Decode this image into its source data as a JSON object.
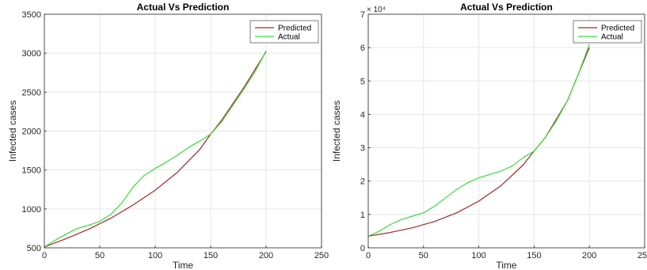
{
  "chart_data": [
    {
      "type": "line",
      "title": "Actual Vs Prediction",
      "xlabel": "Time",
      "ylabel": "Infected cases",
      "xlim": [
        0,
        250
      ],
      "ylim": [
        500,
        3500
      ],
      "xticks": [
        "0",
        "50",
        "100",
        "150",
        "200",
        "250"
      ],
      "yticks": [
        "500",
        "1000",
        "1500",
        "2000",
        "2500",
        "3000",
        "3500"
      ],
      "exponent_label": "",
      "grid": true,
      "legend_position": "top-right",
      "series": [
        {
          "name": "Predicted",
          "color": "#a0282d",
          "x": [
            0,
            20,
            40,
            60,
            80,
            100,
            120,
            140,
            150,
            160,
            180,
            200
          ],
          "y": [
            510,
            620,
            740,
            880,
            1050,
            1240,
            1470,
            1760,
            1960,
            2140,
            2560,
            3020
          ]
        },
        {
          "name": "Actual",
          "color": "#3cdc3c",
          "x": [
            0,
            10,
            20,
            30,
            40,
            50,
            60,
            70,
            80,
            90,
            100,
            110,
            120,
            130,
            140,
            150,
            160,
            170,
            180,
            190,
            200
          ],
          "y": [
            510,
            600,
            680,
            750,
            790,
            840,
            930,
            1080,
            1280,
            1430,
            1520,
            1600,
            1690,
            1790,
            1870,
            1960,
            2120,
            2330,
            2540,
            2760,
            3030
          ]
        }
      ]
    },
    {
      "type": "line",
      "title": "Actual Vs Prediction",
      "xlabel": "Time",
      "ylabel": "Infected cases",
      "xlim": [
        0,
        250
      ],
      "ylim": [
        0,
        70000
      ],
      "xticks": [
        "0",
        "50",
        "100",
        "150",
        "200",
        "250"
      ],
      "yticks": [
        "0",
        "1",
        "2",
        "3",
        "4",
        "5",
        "6",
        "7"
      ],
      "exponent_label": "× 10⁴",
      "grid": true,
      "legend_position": "top-right",
      "series": [
        {
          "name": "Predicted",
          "color": "#a0282d",
          "x": [
            0,
            20,
            40,
            60,
            80,
            100,
            120,
            140,
            150,
            160,
            180,
            200
          ],
          "y": [
            3500,
            4600,
            6000,
            7900,
            10500,
            14000,
            18600,
            24800,
            29000,
            33000,
            44000,
            60000
          ]
        },
        {
          "name": "Actual",
          "color": "#3cdc3c",
          "x": [
            0,
            10,
            20,
            30,
            40,
            50,
            60,
            70,
            80,
            90,
            100,
            110,
            120,
            130,
            140,
            150,
            160,
            170,
            180,
            190,
            200
          ],
          "y": [
            3500,
            5000,
            7000,
            8500,
            9500,
            10500,
            12500,
            15000,
            17500,
            19500,
            21000,
            22000,
            23000,
            24500,
            27000,
            29000,
            33000,
            38000,
            44000,
            52000,
            61000
          ]
        }
      ]
    }
  ]
}
